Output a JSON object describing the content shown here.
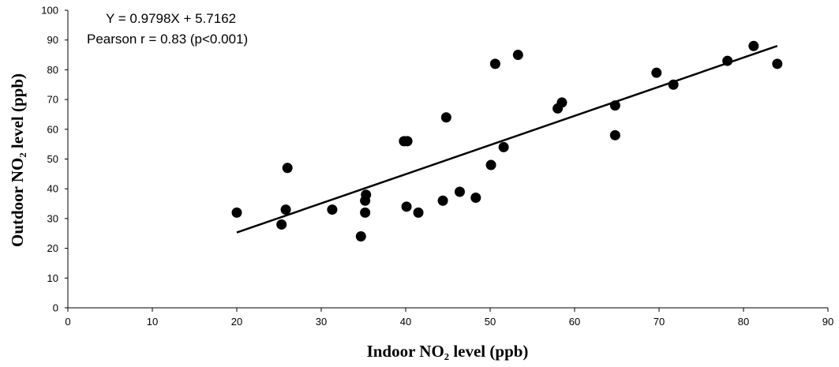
{
  "chart_data": {
    "type": "scatter",
    "title": "",
    "xlabel": "Indoor NO₂ level (ppb)",
    "ylabel": "Outdoor NO₂ level (ppb)",
    "xlim": [
      0,
      90
    ],
    "ylim": [
      0,
      100
    ],
    "x_ticks": [
      0,
      10,
      20,
      30,
      40,
      50,
      60,
      70,
      80,
      90
    ],
    "y_ticks": [
      0,
      10,
      20,
      30,
      40,
      50,
      60,
      70,
      80,
      90,
      100
    ],
    "grid": false,
    "legend": "none",
    "annotations": [
      "Y = 0.9798X + 5.7162",
      "Pearson r = 0.83 (p<0.001)"
    ],
    "regression": {
      "slope": 0.9798,
      "intercept": 5.7162,
      "x_range": [
        20,
        84
      ]
    },
    "points": [
      {
        "x": 20,
        "y": 32
      },
      {
        "x": 25.3,
        "y": 28
      },
      {
        "x": 25.8,
        "y": 33
      },
      {
        "x": 26,
        "y": 47
      },
      {
        "x": 31.3,
        "y": 33
      },
      {
        "x": 34.7,
        "y": 24
      },
      {
        "x": 35.2,
        "y": 32
      },
      {
        "x": 35.2,
        "y": 36
      },
      {
        "x": 35.3,
        "y": 38
      },
      {
        "x": 39.8,
        "y": 56
      },
      {
        "x": 40.2,
        "y": 56
      },
      {
        "x": 40.1,
        "y": 34
      },
      {
        "x": 41.5,
        "y": 32
      },
      {
        "x": 44.4,
        "y": 36
      },
      {
        "x": 44.8,
        "y": 64
      },
      {
        "x": 46.4,
        "y": 39
      },
      {
        "x": 48.3,
        "y": 37
      },
      {
        "x": 50.1,
        "y": 48
      },
      {
        "x": 50.6,
        "y": 82
      },
      {
        "x": 51.6,
        "y": 54
      },
      {
        "x": 53.3,
        "y": 85
      },
      {
        "x": 58,
        "y": 67
      },
      {
        "x": 58.5,
        "y": 69
      },
      {
        "x": 64.8,
        "y": 68
      },
      {
        "x": 64.8,
        "y": 58
      },
      {
        "x": 69.7,
        "y": 79
      },
      {
        "x": 71.7,
        "y": 75
      },
      {
        "x": 78.1,
        "y": 83
      },
      {
        "x": 81.2,
        "y": 88
      },
      {
        "x": 84,
        "y": 82
      }
    ]
  }
}
